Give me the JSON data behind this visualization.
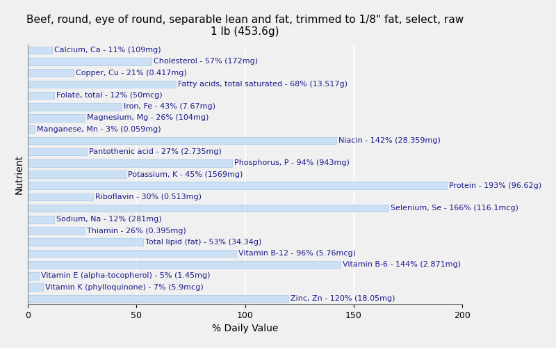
{
  "title": "Beef, round, eye of round, separable lean and fat, trimmed to 1/8\" fat, select, raw\n1 lb (453.6g)",
  "xlabel": "% Daily Value",
  "ylabel": "Nutrient",
  "nutrients": [
    "Calcium, Ca - 11% (109mg)",
    "Cholesterol - 57% (172mg)",
    "Copper, Cu - 21% (0.417mg)",
    "Fatty acids, total saturated - 68% (13.517g)",
    "Folate, total - 12% (50mcg)",
    "Iron, Fe - 43% (7.67mg)",
    "Magnesium, Mg - 26% (104mg)",
    "Manganese, Mn - 3% (0.059mg)",
    "Niacin - 142% (28.359mg)",
    "Pantothenic acid - 27% (2.735mg)",
    "Phosphorus, P - 94% (943mg)",
    "Potassium, K - 45% (1569mg)",
    "Protein - 193% (96.62g)",
    "Riboflavin - 30% (0.513mg)",
    "Selenium, Se - 166% (116.1mcg)",
    "Sodium, Na - 12% (281mg)",
    "Thiamin - 26% (0.395mg)",
    "Total lipid (fat) - 53% (34.34g)",
    "Vitamin B-12 - 96% (5.76mcg)",
    "Vitamin B-6 - 144% (2.871mg)",
    "Vitamin E (alpha-tocopherol) - 5% (1.45mg)",
    "Vitamin K (phylloquinone) - 7% (5.9mcg)",
    "Zinc, Zn - 120% (18.05mg)"
  ],
  "values": [
    11,
    57,
    21,
    68,
    12,
    43,
    26,
    3,
    142,
    27,
    94,
    45,
    193,
    30,
    166,
    12,
    26,
    53,
    96,
    144,
    5,
    7,
    120
  ],
  "bar_color": "#cce0f5",
  "bar_edge_color": "#a8c8e8",
  "text_color": "#1a1a8c",
  "background_color": "#f0f0f0",
  "plot_bg_color": "#f0f0f0",
  "xlim": [
    0,
    200
  ],
  "xticks": [
    0,
    50,
    100,
    150,
    200
  ],
  "title_fontsize": 11,
  "label_fontsize": 8.0,
  "tick_fontsize": 9
}
